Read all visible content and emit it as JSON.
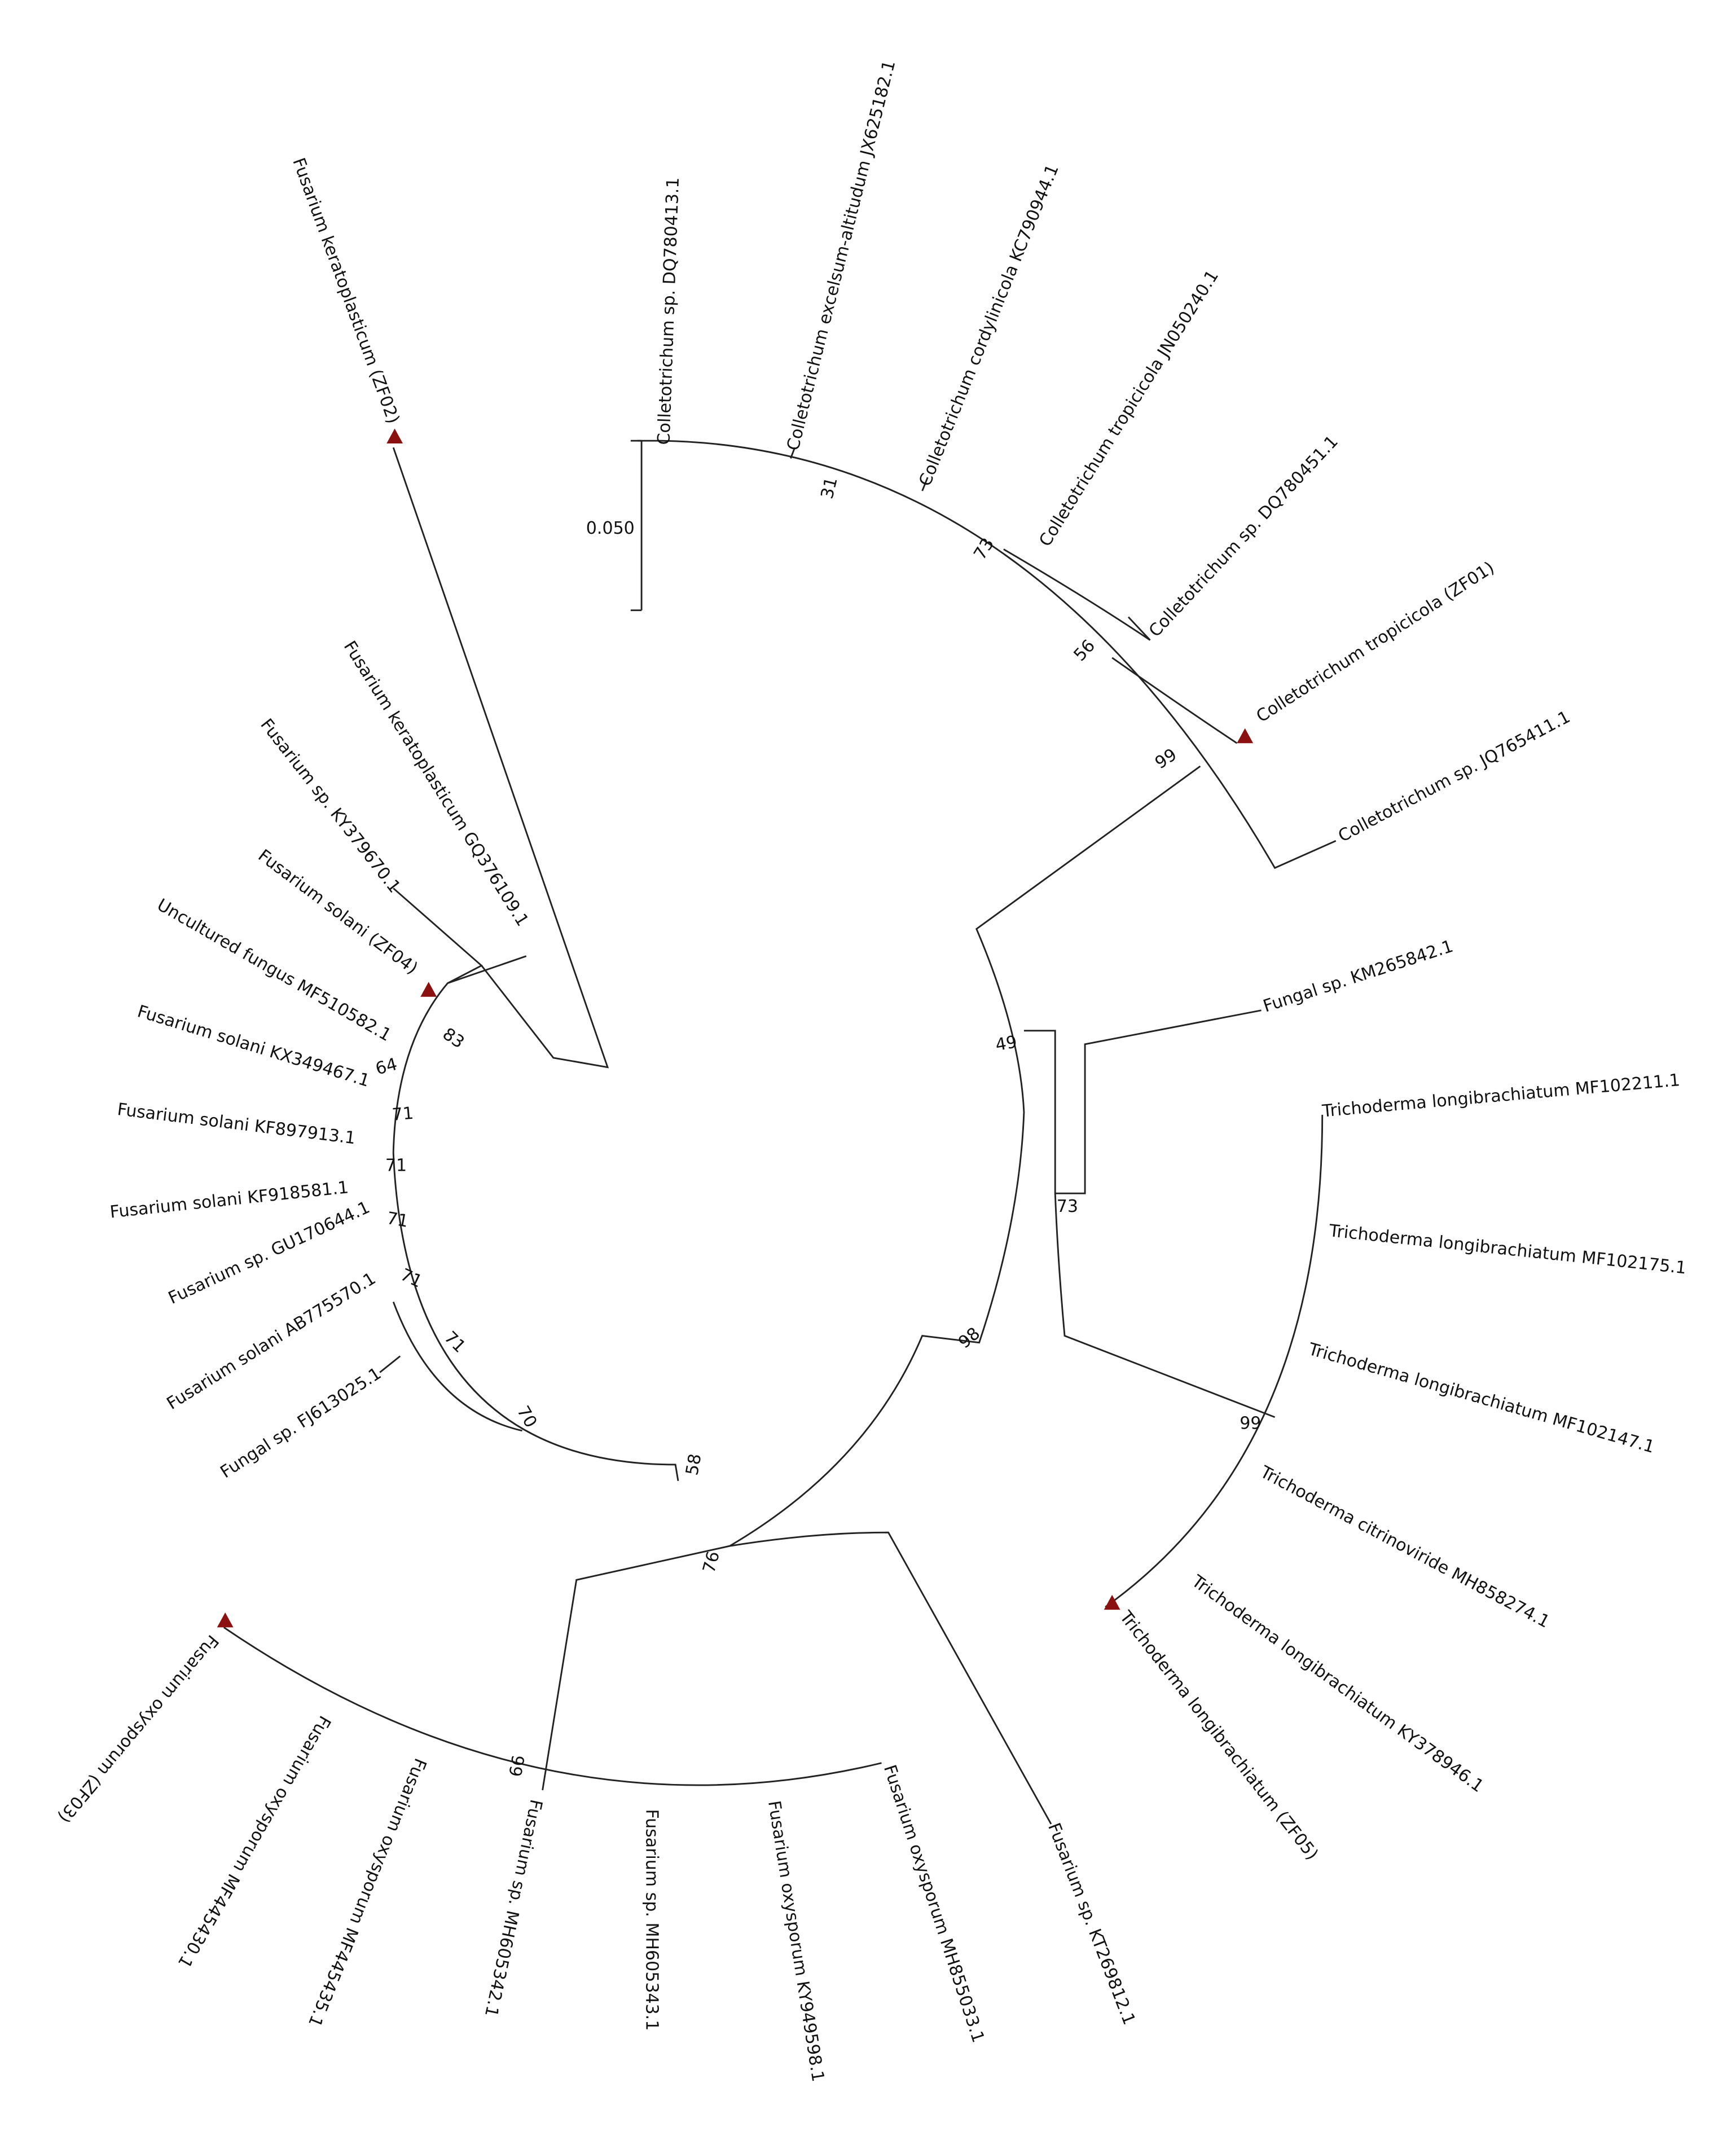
{
  "leaves": [
    "Colletotrichum sp. DQ780413.1",
    "Colletotrichum excelsum-altitudum JX625182.1",
    "Colletotrichum cordylinicola KC790944.1",
    "Colletotrichum tropicicola JN050240.1",
    "Colletotrichum sp. DQ780451.1",
    "Colletotrichum tropicicola (ZF01)",
    "Colletotrichum sp. JQ765411.1",
    "Fungal sp. KM265842.1",
    "Trichoderma longibrachiatum MF102211.1",
    "Trichoderma longibrachiatum MF102175.1",
    "Trichoderma longibrachiatum MF102147.1",
    "Trichoderma citrinoviride MH858274.1",
    "Trichoderma longibrachiatum KY378946.1",
    "Trichoderma longibrachiatum (ZF05)",
    "Fusarium sp. KT269812.1",
    "Fusarium oxysporum MH855033.1",
    "Fusarium oxysporum KY949598.1",
    "Fusarium sp. MH605343.1",
    "Fusarium sp. MH605342.1",
    "Fusarium oxysporum MF445435.1",
    "Fusarium oxysporum MF445430.1",
    "Fusarium oxysporum (ZF03)",
    "Fungal sp. FJ613025.1",
    "Fusarium solani AB775570.1",
    "Fusarium sp. GU170644.1",
    "Fusarium solani KF918581.1",
    "Fusarium solani KF897913.1",
    "Fusarium solani KX349467.1",
    "Uncultured fungus MF510582.1",
    "Fusarium solani (ZF04)",
    "Fusarium sp. KY379670.1",
    "Fusarium keratoplasticum GQ376109.1",
    "Fusarium keratoplasticum (ZF02)"
  ],
  "bootstrap": [
    31,
    73,
    56,
    99,
    49,
    73,
    98,
    99,
    58,
    76,
    99,
    70,
    71,
    71,
    71,
    71,
    71,
    64,
    83
  ],
  "scale_bar": "0.050"
}
